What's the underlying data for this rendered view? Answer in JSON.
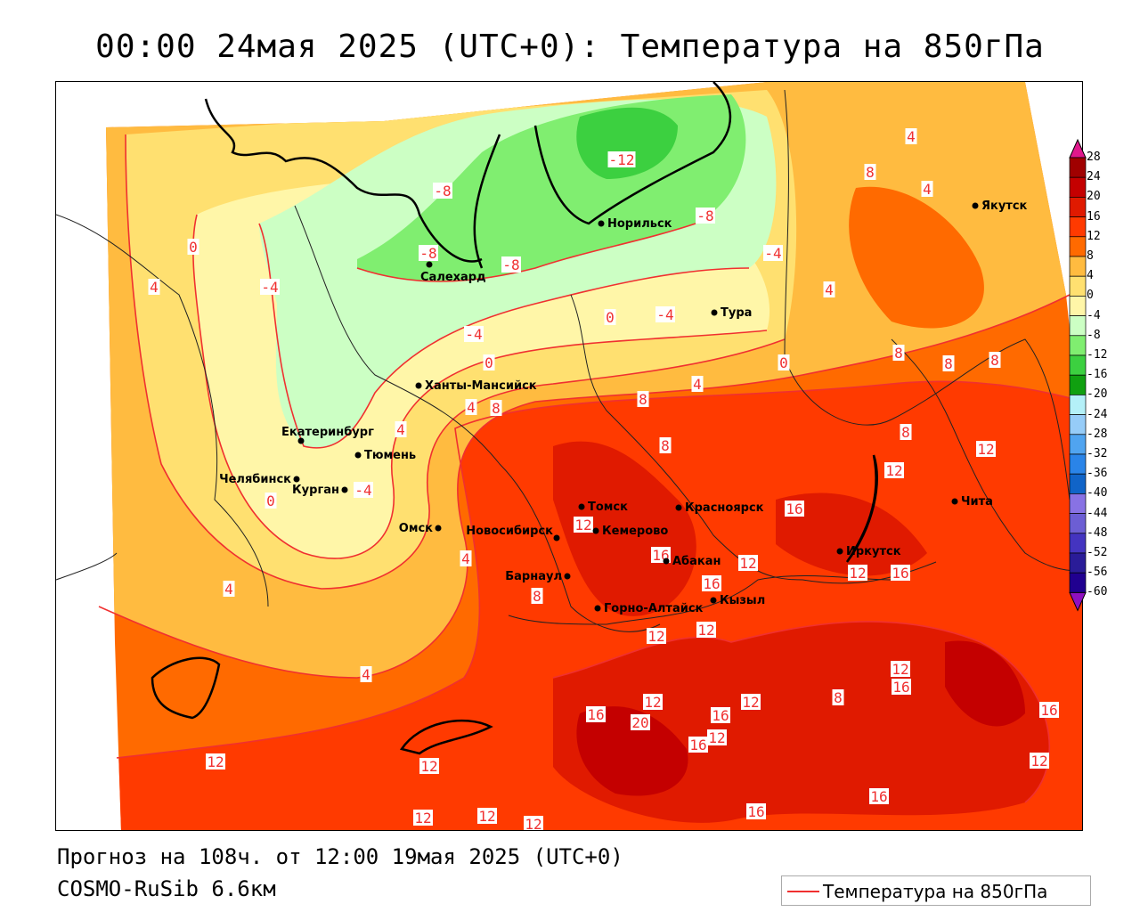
{
  "title": "00:00 24мая 2025 (UTC+0): Температура на 850гПа",
  "footer": {
    "forecast": "Прогноз на 108ч. от 12:00 19мая 2025 (UTC+0)",
    "model": "COSMO-RuSib 6.6км"
  },
  "legend": {
    "label": "Температура на 850гПа",
    "line_color": "#f03030"
  },
  "colorbar": {
    "ticks": [
      "28",
      "24",
      "20",
      "16",
      "12",
      "8",
      "4",
      "0",
      "-4",
      "-8",
      "-12",
      "-16",
      "-20",
      "-24",
      "-28",
      "-32",
      "-36",
      "-40",
      "-44",
      "-48",
      "-52",
      "-56",
      "-60"
    ],
    "colors": [
      "#a00000",
      "#c40000",
      "#e01a00",
      "#ff3a00",
      "#ff6a00",
      "#ffbb40",
      "#ffe070",
      "#fff6a8",
      "#ccffc4",
      "#80ee70",
      "#3cd040",
      "#10a010",
      "#b4f0f8",
      "#96ccf8",
      "#50a4f0",
      "#2a84e8",
      "#1064c8",
      "#8872e4",
      "#6c5ed4",
      "#4434c0",
      "#2a1c98",
      "#200090"
    ],
    "top_arrow": "#e0188c",
    "bottom_arrow": "#9010c0"
  },
  "cities": [
    "Якутск",
    "Норильск",
    "Салехард",
    "Тура",
    "Ханты-Мансийск",
    "Екатеринбург",
    "Тюмень",
    "Челябинск",
    "Курган",
    "Омск",
    "Новосибирск",
    "Томск",
    "Кемерово",
    "Красноярск",
    "Барнаул",
    "Абакан",
    "Горно-Алтайск",
    "Кызыл",
    "Иркутск",
    "Чита"
  ],
  "contour_labels": [
    "-12",
    "-8",
    "-8",
    "-8",
    "-8",
    "-4",
    "-4",
    "-4",
    "-4",
    "-4",
    "0",
    "0",
    "0",
    "0",
    "0",
    "4",
    "4",
    "4",
    "4",
    "4",
    "4",
    "4",
    "4",
    "4",
    "4",
    "8",
    "8",
    "8",
    "8",
    "8",
    "8",
    "8",
    "8",
    "8",
    "8",
    "12",
    "12",
    "12",
    "12",
    "12",
    "12",
    "12",
    "12",
    "12",
    "12",
    "12",
    "12",
    "12",
    "12",
    "12",
    "12",
    "12",
    "16",
    "16",
    "16",
    "16",
    "16",
    "16",
    "16",
    "16",
    "16",
    "16",
    "16",
    "20"
  ]
}
